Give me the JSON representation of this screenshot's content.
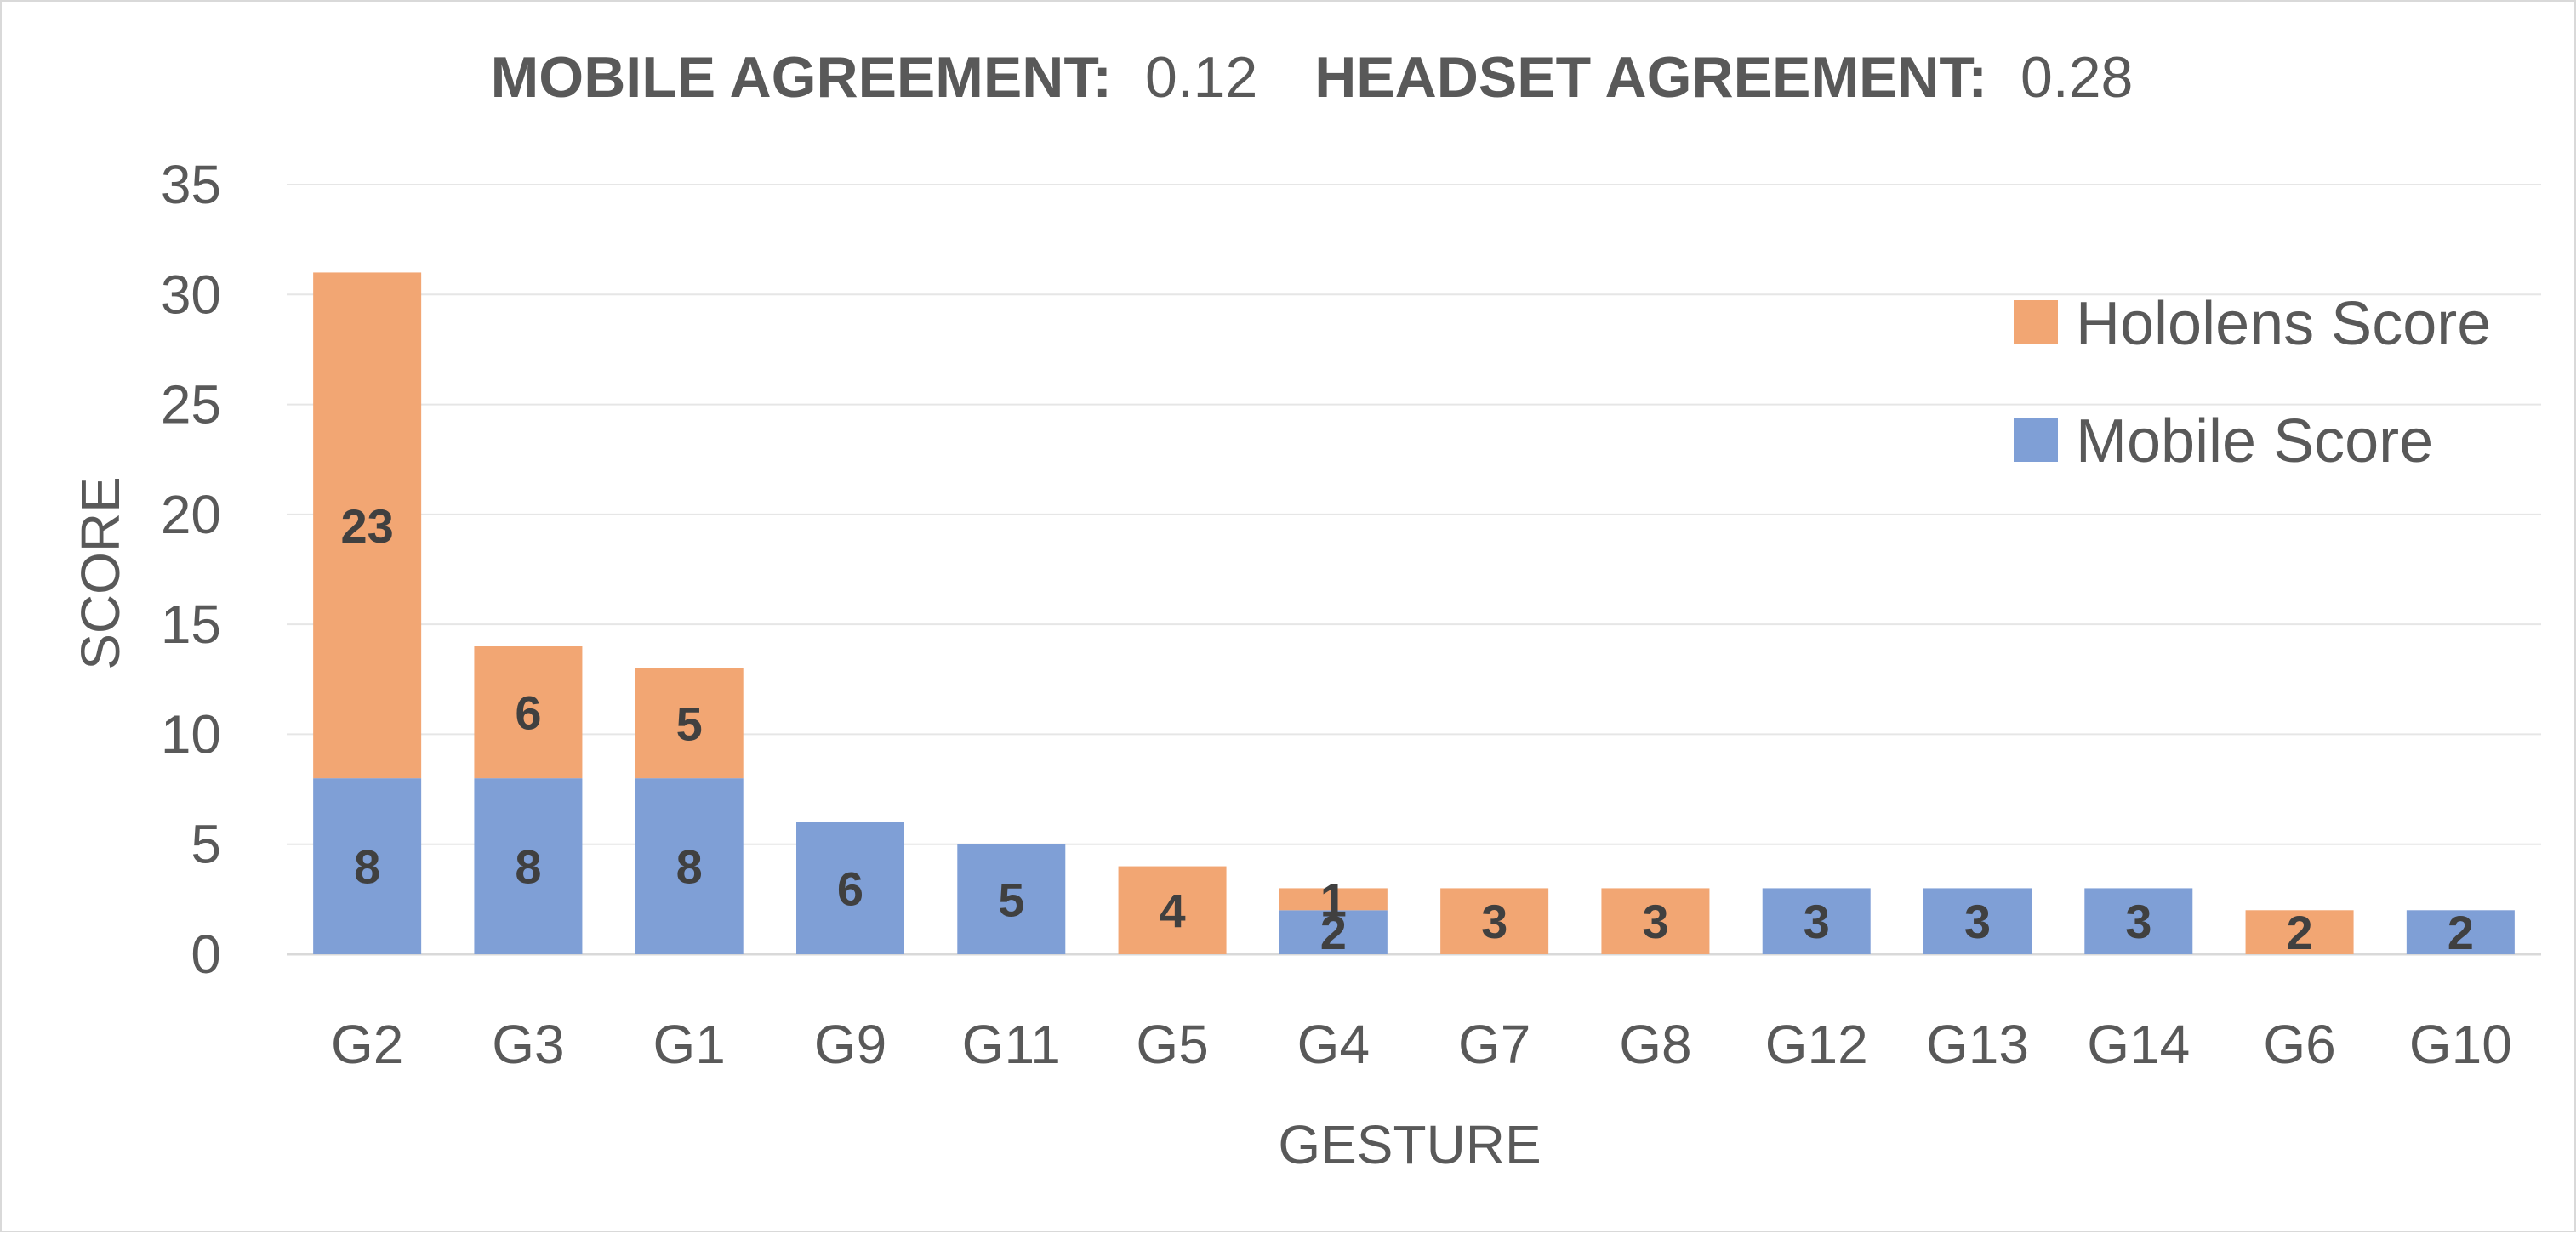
{
  "title": {
    "part1_bold": "MOBILE AGREEMENT:",
    "part1_value": "0.12",
    "part2_bold": "HEADSET AGREEMENT:",
    "part2_value": "0.28"
  },
  "chart_data": {
    "type": "bar",
    "stacked": true,
    "categories": [
      "G2",
      "G3",
      "G1",
      "G9",
      "G11",
      "G5",
      "G4",
      "G7",
      "G8",
      "G12",
      "G13",
      "G14",
      "G6",
      "G10"
    ],
    "series": [
      {
        "name": "Mobile Score",
        "color": "#7f9fd6",
        "values": [
          8,
          8,
          8,
          6,
          5,
          0,
          2,
          0,
          0,
          3,
          3,
          3,
          0,
          2
        ]
      },
      {
        "name": "Hololens Score",
        "color": "#f2a673",
        "values": [
          23,
          6,
          5,
          0,
          0,
          4,
          1,
          3,
          3,
          0,
          0,
          0,
          2,
          0
        ]
      }
    ],
    "xlabel": "GESTURE",
    "ylabel": "SCORE",
    "ylim": [
      0,
      35
    ],
    "yticks": [
      0,
      5,
      10,
      15,
      20,
      25,
      30,
      35
    ],
    "grid": true,
    "legend": "right",
    "legend_order": [
      "Hololens Score",
      "Mobile Score"
    ]
  }
}
